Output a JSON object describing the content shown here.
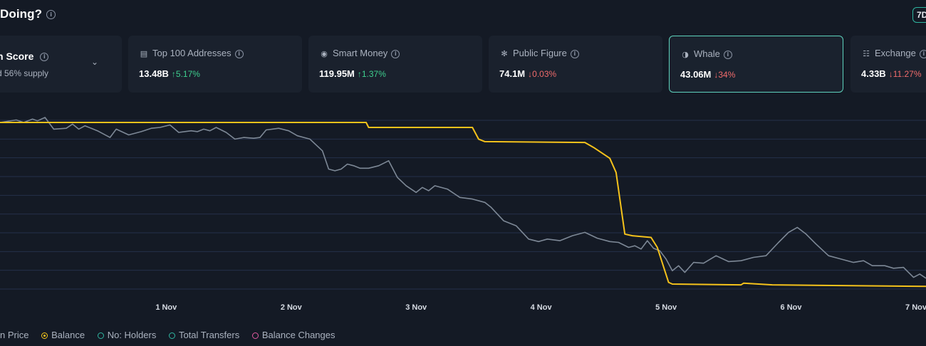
{
  "header": {
    "title": "Doing?",
    "period": "7D"
  },
  "score_card": {
    "title": "n Score",
    "subtitle": "d 56% supply"
  },
  "cards": [
    {
      "label": "Top 100 Addresses",
      "icon": "wallet-icon",
      "value": "13.48B",
      "change": "5.17%",
      "direction": "up"
    },
    {
      "label": "Smart Money",
      "icon": "smart-money-icon",
      "value": "119.95M",
      "change": "1.37%",
      "direction": "up"
    },
    {
      "label": "Public Figure",
      "icon": "public-figure-icon",
      "value": "74.1M",
      "change": "0.03%",
      "direction": "down"
    },
    {
      "label": "Whale",
      "icon": "whale-icon",
      "value": "43.06M",
      "change": "34%",
      "direction": "down",
      "active": true
    },
    {
      "label": "Exchange",
      "icon": "bank-icon",
      "value": "4.33B",
      "change": "11.27%",
      "direction": "down"
    }
  ],
  "colors": {
    "up": "#3ecf8e",
    "down": "#f06b6b",
    "price_line": "#7d8896",
    "balance_line": "#f5c21b",
    "accent": "#5fd3bd"
  },
  "chart_data": {
    "type": "line",
    "x_ticks": [
      "1 Nov",
      "2 Nov",
      "3 Nov",
      "4 Nov",
      "5 Nov",
      "6 Nov",
      "7 Nov"
    ],
    "x_range": [
      -0.33,
      7.08
    ],
    "y_range": [
      0,
      100
    ],
    "grid": "horizontal",
    "legend_position": "bottom-left",
    "series": [
      {
        "name": "n Price",
        "color": "#7d8896",
        "points": [
          [
            -0.33,
            100
          ],
          [
            -0.2,
            101.5
          ],
          [
            -0.14,
            100
          ],
          [
            -0.07,
            102
          ],
          [
            -0.03,
            101
          ],
          [
            0.03,
            103
          ],
          [
            0.1,
            96
          ],
          [
            0.2,
            96.5
          ],
          [
            0.25,
            99
          ],
          [
            0.3,
            96
          ],
          [
            0.35,
            98
          ],
          [
            0.45,
            95
          ],
          [
            0.55,
            91
          ],
          [
            0.6,
            96
          ],
          [
            0.7,
            92.5
          ],
          [
            0.8,
            94.5
          ],
          [
            0.88,
            96.5
          ],
          [
            0.95,
            97
          ],
          [
            1.03,
            98.5
          ],
          [
            1.1,
            94
          ],
          [
            1.2,
            95
          ],
          [
            1.25,
            94.5
          ],
          [
            1.3,
            96
          ],
          [
            1.35,
            95
          ],
          [
            1.4,
            97
          ],
          [
            1.48,
            94
          ],
          [
            1.55,
            90
          ],
          [
            1.62,
            91
          ],
          [
            1.7,
            90.5
          ],
          [
            1.75,
            91
          ],
          [
            1.8,
            95.5
          ],
          [
            1.9,
            96.5
          ],
          [
            1.98,
            95
          ],
          [
            2.05,
            92
          ],
          [
            2.15,
            90
          ],
          [
            2.25,
            83
          ],
          [
            2.3,
            72
          ],
          [
            2.35,
            71
          ],
          [
            2.4,
            72
          ],
          [
            2.45,
            75
          ],
          [
            2.5,
            74
          ],
          [
            2.55,
            72.5
          ],
          [
            2.62,
            72.5
          ],
          [
            2.7,
            74
          ],
          [
            2.78,
            77
          ],
          [
            2.85,
            67
          ],
          [
            2.92,
            62
          ],
          [
            3.0,
            58
          ],
          [
            3.05,
            61
          ],
          [
            3.1,
            59
          ],
          [
            3.15,
            62
          ],
          [
            3.25,
            60
          ],
          [
            3.35,
            55
          ],
          [
            3.45,
            54
          ],
          [
            3.55,
            52
          ],
          [
            3.6,
            49
          ],
          [
            3.7,
            41
          ],
          [
            3.8,
            38
          ],
          [
            3.9,
            30
          ],
          [
            3.98,
            28.5
          ],
          [
            4.05,
            30
          ],
          [
            4.15,
            29
          ],
          [
            4.25,
            32
          ],
          [
            4.35,
            34
          ],
          [
            4.45,
            30.5
          ],
          [
            4.55,
            28.5
          ],
          [
            4.62,
            28
          ],
          [
            4.7,
            25
          ],
          [
            4.75,
            26
          ],
          [
            4.8,
            24
          ],
          [
            4.85,
            29
          ],
          [
            4.9,
            24.5
          ],
          [
            4.95,
            23
          ],
          [
            5.0,
            18
          ],
          [
            5.05,
            11
          ],
          [
            5.1,
            14
          ],
          [
            5.15,
            10
          ],
          [
            5.22,
            16
          ],
          [
            5.3,
            15.5
          ],
          [
            5.4,
            20
          ],
          [
            5.5,
            16.5
          ],
          [
            5.6,
            17
          ],
          [
            5.7,
            19
          ],
          [
            5.8,
            20
          ],
          [
            5.9,
            28
          ],
          [
            5.98,
            34
          ],
          [
            6.05,
            37
          ],
          [
            6.12,
            33
          ],
          [
            6.2,
            27
          ],
          [
            6.3,
            20
          ],
          [
            6.4,
            18
          ],
          [
            6.5,
            16
          ],
          [
            6.58,
            17
          ],
          [
            6.65,
            14
          ],
          [
            6.75,
            14
          ],
          [
            6.82,
            12.5
          ],
          [
            6.9,
            13
          ],
          [
            6.98,
            7
          ],
          [
            7.03,
            9
          ],
          [
            7.08,
            6.5
          ]
        ]
      },
      {
        "name": "Balance",
        "color": "#f5c21b",
        "points": [
          [
            -0.33,
            100
          ],
          [
            1.1,
            100
          ],
          [
            2.6,
            100
          ],
          [
            2.62,
            97
          ],
          [
            3.45,
            97
          ],
          [
            3.5,
            90
          ],
          [
            3.55,
            88.5
          ],
          [
            4.35,
            88
          ],
          [
            4.42,
            85
          ],
          [
            4.55,
            78.5
          ],
          [
            4.6,
            70
          ],
          [
            4.67,
            33
          ],
          [
            4.73,
            32
          ],
          [
            4.88,
            31
          ],
          [
            4.93,
            25
          ],
          [
            5.02,
            4
          ],
          [
            5.05,
            3
          ],
          [
            5.6,
            2.5
          ],
          [
            5.62,
            3.5
          ],
          [
            5.85,
            2.5
          ],
          [
            7.08,
            1.6
          ]
        ]
      }
    ]
  },
  "legend": [
    {
      "label": "n Price",
      "color": "#7d8896",
      "style": "filled"
    },
    {
      "label": "Balance",
      "color": "#f5c21b",
      "style": "filled"
    },
    {
      "label": "No: Holders",
      "color": "#2fb6a0",
      "style": "outline"
    },
    {
      "label": "Total Transfers",
      "color": "#2fb6a0",
      "style": "outline"
    },
    {
      "label": "Balance Changes",
      "color": "#e05aa0",
      "style": "outline"
    }
  ]
}
